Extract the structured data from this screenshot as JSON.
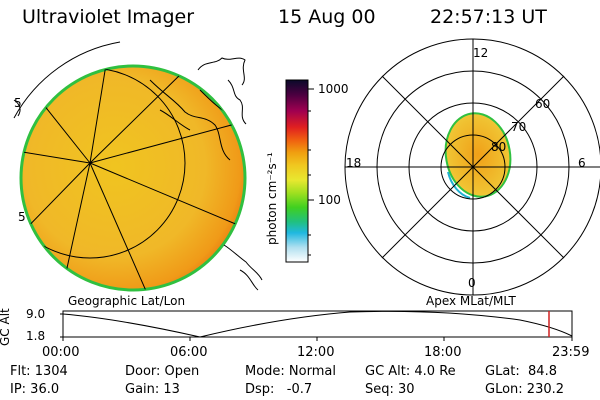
{
  "header": {
    "instrument": "Ultraviolet Imager",
    "date": "15 Aug 00",
    "time": "22:57:13 UT"
  },
  "colors": {
    "auroral_fill": "#f0b020",
    "auroral_edge": "#f09010",
    "limb": "#20c040",
    "timeline_marker": "#d02020"
  },
  "colorbar": {
    "ticks": [
      "1000",
      "100"
    ],
    "unit_label": "photon cm⁻²s⁻¹",
    "stops": [
      "#0a0a2a",
      "#4a0040",
      "#a00050",
      "#e02020",
      "#f06010",
      "#f0a010",
      "#f0c820",
      "#e8e830",
      "#a0e020",
      "#40d020",
      "#20c080",
      "#20b8e0",
      "#b0e0f0",
      "#ffffff"
    ]
  },
  "left_panel": {
    "label": "Geographic Lat/Lon",
    "edge_digit_left": "5",
    "edge_digit_bottom_left": "5"
  },
  "right_panel": {
    "label": "Apex MLat/MLT",
    "mlt_top": "12",
    "mlt_bottom": "0",
    "mlt_left": "18",
    "mlt_right": "6",
    "lat_labels": [
      "60",
      "70",
      "80"
    ]
  },
  "timeline": {
    "axis_label": "GC Alt",
    "y_top": "9.0",
    "y_bottom": "1.8",
    "x_ticks": [
      "00:00",
      "06:00",
      "12:00",
      "18:00",
      "23:59"
    ],
    "marker_time_fraction": 0.955
  },
  "status": {
    "flt": "Flt: 1304",
    "ip": "IP: 36.0",
    "door": "Door: Open",
    "gain": "Gain: 13",
    "mode": "Mode: Normal",
    "dsp": "Dsp:   -0.7",
    "gc_alt": "GC Alt: 4.0 Re",
    "seq": "Seq: 30",
    "glat": "GLat:  84.8",
    "glon": "GLon: 230.2"
  }
}
